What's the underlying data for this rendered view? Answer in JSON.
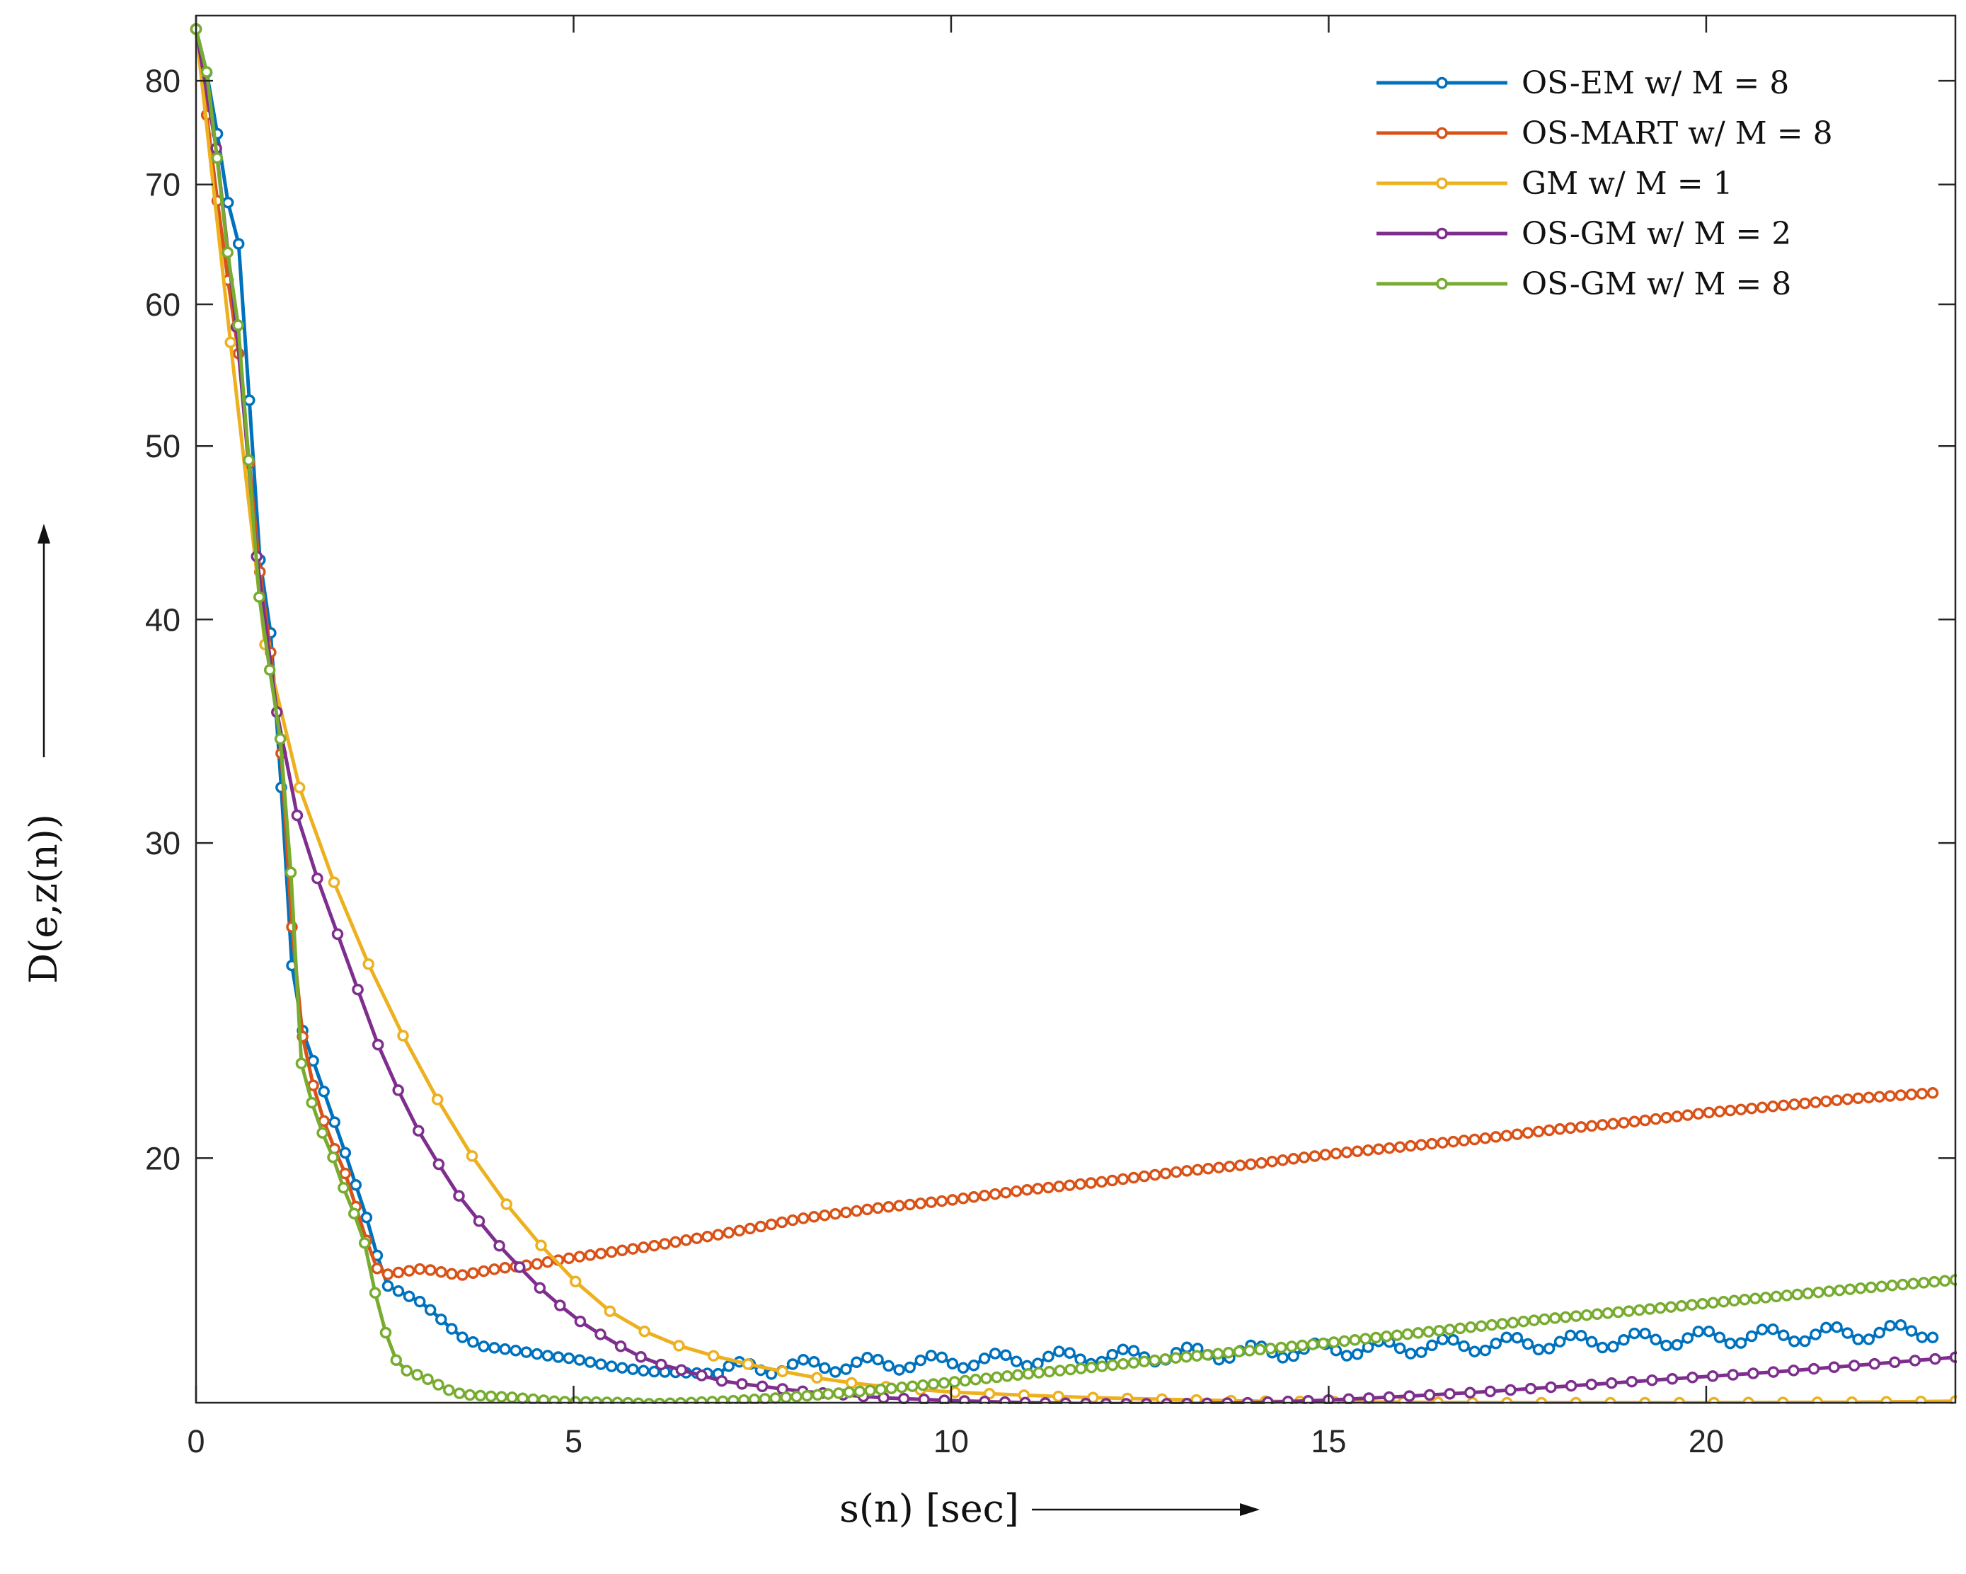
{
  "chart_data": {
    "type": "line",
    "title": "",
    "xlabel": "s(n) [sec]",
    "ylabel": "D(e,z(n))",
    "xlim": [
      0,
      23.3
    ],
    "ylim": [
      14.6,
      87
    ],
    "yscale": "log",
    "grid": false,
    "legend_position": "top-right",
    "x_ticks": [
      0,
      5,
      10,
      15,
      20
    ],
    "x_tick_labels": [
      "0",
      "5",
      "10",
      "15",
      "20"
    ],
    "y_ticks": [
      20,
      30,
      40,
      50,
      60,
      70,
      80
    ],
    "y_tick_labels": [
      "20",
      "30",
      "40",
      "50",
      "60",
      "70",
      "80"
    ],
    "series": [
      {
        "name": "OS-EM w/ M = 8",
        "color": "#0072BD",
        "n_points": 164,
        "x_max": 23.0,
        "anchors": [
          [
            0,
            85.5
          ],
          [
            0.2,
            79
          ],
          [
            0.4,
            69
          ],
          [
            0.6,
            64
          ],
          [
            0.75,
            49
          ],
          [
            0.85,
            43
          ],
          [
            1.0,
            39
          ],
          [
            1.2,
            29
          ],
          [
            1.3,
            24.3
          ],
          [
            1.5,
            23
          ],
          [
            2.0,
            20
          ],
          [
            2.3,
            18.3
          ],
          [
            2.5,
            17.0
          ],
          [
            3.0,
            16.6
          ],
          [
            3.5,
            15.9
          ],
          [
            3.8,
            15.7
          ],
          [
            4.3,
            15.6
          ],
          [
            4.7,
            15.5
          ],
          [
            5.0,
            15.45
          ],
          [
            5.5,
            15.3
          ],
          [
            6.0,
            15.2
          ],
          [
            7.0,
            15.15
          ]
        ],
        "tail": {
          "c": 15.25,
          "k": 0.048,
          "osc_amp": 0.13,
          "period": 0.85
        }
      },
      {
        "name": "OS-MART w/ M = 8",
        "color": "#D95319",
        "n_points": 164,
        "x_max": 23.0,
        "anchors": [
          [
            0,
            85.5
          ],
          [
            0.35,
            65
          ],
          [
            0.6,
            55
          ],
          [
            0.8,
            44
          ],
          [
            1.0,
            38
          ],
          [
            1.15,
            33
          ],
          [
            1.25,
            27.5
          ],
          [
            1.4,
            23.5
          ],
          [
            1.6,
            21.5
          ],
          [
            1.8,
            20.4
          ],
          [
            2.0,
            19.5
          ],
          [
            2.2,
            18.3
          ],
          [
            2.35,
            17.5
          ],
          [
            2.45,
            17.2
          ],
          [
            3.0,
            17.35
          ],
          [
            3.5,
            17.2
          ],
          [
            4.0,
            17.35
          ],
          [
            4.5,
            17.45
          ],
          [
            5.0,
            17.6
          ],
          [
            6.0,
            17.85
          ],
          [
            7.0,
            18.15
          ],
          [
            8.0,
            18.5
          ],
          [
            9.0,
            18.75
          ],
          [
            10.0,
            18.95
          ],
          [
            11.0,
            19.2
          ],
          [
            12.0,
            19.4
          ],
          [
            13.0,
            19.65
          ],
          [
            14.0,
            19.85
          ],
          [
            15.0,
            20.1
          ],
          [
            16.0,
            20.3
          ],
          [
            17.0,
            20.5
          ],
          [
            18.0,
            20.75
          ],
          [
            19.0,
            20.95
          ],
          [
            20.0,
            21.2
          ],
          [
            21.0,
            21.4
          ],
          [
            22.0,
            21.6
          ],
          [
            23.0,
            21.75
          ]
        ],
        "tail": null
      },
      {
        "name": "GM w/ M = 1",
        "color": "#EDB120",
        "n_points": 52,
        "x_max": 23.3,
        "anchors": [
          [
            0,
            85.5
          ],
          [
            0.5,
            55
          ],
          [
            1.0,
            36
          ],
          [
            1.5,
            31
          ],
          [
            2.0,
            27.3
          ],
          [
            2.5,
            24.5
          ],
          [
            3.0,
            22.3
          ],
          [
            3.5,
            20.5
          ],
          [
            4.0,
            19.1
          ],
          [
            4.5,
            18.0
          ],
          [
            5.0,
            17.1
          ],
          [
            5.5,
            16.4
          ],
          [
            6.0,
            15.95
          ],
          [
            6.5,
            15.65
          ],
          [
            7.0,
            15.45
          ],
          [
            7.5,
            15.28
          ],
          [
            8.0,
            15.13
          ],
          [
            8.5,
            15.01
          ],
          [
            9.0,
            14.92
          ],
          [
            10.0,
            14.8
          ],
          [
            11.0,
            14.74
          ],
          [
            12.0,
            14.69
          ],
          [
            13.0,
            14.66
          ],
          [
            14.0,
            14.63
          ],
          [
            15.0,
            14.62
          ],
          [
            16.0,
            14.61
          ],
          [
            17.0,
            14.6
          ],
          [
            20.0,
            14.6
          ],
          [
            22.0,
            14.61
          ],
          [
            23.3,
            14.63
          ]
        ],
        "tail": null
      },
      {
        "name": "OS-GM w/ M = 2",
        "color": "#7E2F8E",
        "n_points": 88,
        "x_max": 23.3,
        "anchors": [
          [
            0,
            85.5
          ],
          [
            0.3,
            72
          ],
          [
            0.6,
            55
          ],
          [
            0.8,
            43.5
          ],
          [
            1.0,
            37
          ],
          [
            1.25,
            32
          ],
          [
            1.5,
            29.5
          ],
          [
            2.0,
            25.8
          ],
          [
            2.5,
            22.6
          ],
          [
            3.0,
            20.5
          ],
          [
            3.5,
            19.0
          ],
          [
            4.0,
            17.9
          ],
          [
            4.5,
            17.0
          ],
          [
            5.0,
            16.3
          ],
          [
            5.5,
            15.8
          ],
          [
            6.0,
            15.4
          ],
          [
            6.5,
            15.2
          ],
          [
            7.0,
            15.0
          ],
          [
            8.0,
            14.82
          ],
          [
            9.0,
            14.7
          ],
          [
            10.0,
            14.64
          ],
          [
            11.0,
            14.6
          ],
          [
            12.0,
            14.58
          ],
          [
            13.0,
            14.58
          ],
          [
            14.0,
            14.6
          ],
          [
            15.0,
            14.65
          ],
          [
            16.0,
            14.72
          ],
          [
            17.0,
            14.8
          ],
          [
            18.0,
            14.9
          ],
          [
            19.0,
            15.0
          ],
          [
            20.0,
            15.1
          ],
          [
            21.0,
            15.2
          ],
          [
            22.0,
            15.32
          ],
          [
            23.3,
            15.48
          ]
        ],
        "tail": null
      },
      {
        "name": "OS-GM w/ M = 8",
        "color": "#77AC30",
        "n_points": 168,
        "x_max": 23.3,
        "anchors": [
          [
            0,
            85.5
          ],
          [
            0.2,
            79
          ],
          [
            0.35,
            67
          ],
          [
            0.55,
            59
          ],
          [
            0.75,
            46
          ],
          [
            0.9,
            38
          ],
          [
            1.05,
            37
          ],
          [
            1.15,
            33
          ],
          [
            1.25,
            29.5
          ],
          [
            1.3,
            24.5
          ],
          [
            1.4,
            22.5
          ],
          [
            1.6,
            21.0
          ],
          [
            1.8,
            20.1
          ],
          [
            2.0,
            19.0
          ],
          [
            2.2,
            18.2
          ],
          [
            2.4,
            16.6
          ],
          [
            2.6,
            15.5
          ],
          [
            2.8,
            15.2
          ],
          [
            3.0,
            15.1
          ],
          [
            3.2,
            14.95
          ],
          [
            3.4,
            14.8
          ],
          [
            3.6,
            14.75
          ],
          [
            3.9,
            14.72
          ],
          [
            4.2,
            14.7
          ],
          [
            4.5,
            14.66
          ],
          [
            4.8,
            14.62
          ],
          [
            5.3,
            14.61
          ],
          [
            5.7,
            14.6
          ],
          [
            6.0,
            14.58
          ],
          [
            6.5,
            14.6
          ],
          [
            7.0,
            14.63
          ],
          [
            7.5,
            14.67
          ],
          [
            8.0,
            14.72
          ],
          [
            9.0,
            14.84
          ],
          [
            10.0,
            14.99
          ],
          [
            11.0,
            15.15
          ],
          [
            12.0,
            15.3
          ],
          [
            13.0,
            15.47
          ],
          [
            14.0,
            15.62
          ],
          [
            15.0,
            15.77
          ],
          [
            16.0,
            15.94
          ],
          [
            17.0,
            16.11
          ],
          [
            18.0,
            16.28
          ],
          [
            19.0,
            16.43
          ],
          [
            20.0,
            16.59
          ],
          [
            21.0,
            16.75
          ],
          [
            22.0,
            16.91
          ],
          [
            23.3,
            17.1
          ]
        ],
        "tail": null
      }
    ]
  }
}
